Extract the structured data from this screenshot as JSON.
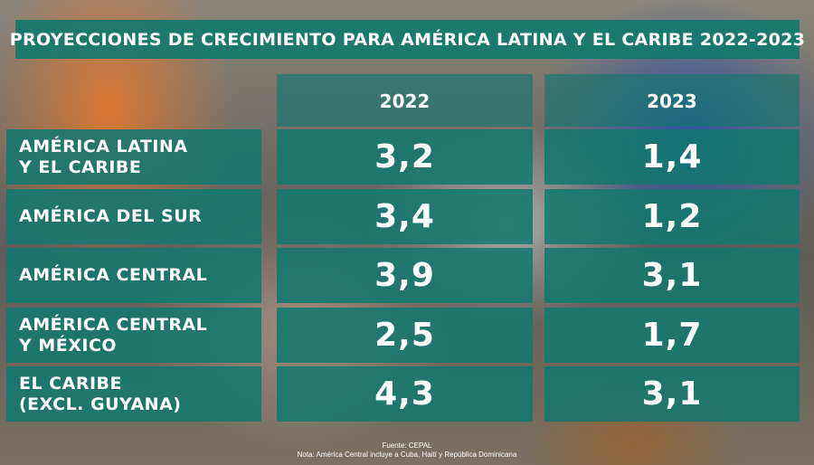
{
  "chart_data": {
    "type": "table",
    "title": "PROYECCIONES DE CRECIMIENTO PARA AMÉRICA LATINA Y EL CARIBE 2022-2023",
    "columns": [
      "2022",
      "2023"
    ],
    "rows": [
      {
        "label": "AMÉRICA LATINA\nY EL CARIBE",
        "values": [
          "3,2",
          "1,4"
        ]
      },
      {
        "label": "AMÉRICA DEL SUR",
        "values": [
          "3,4",
          "1,2"
        ]
      },
      {
        "label": "AMÉRICA CENTRAL",
        "values": [
          "3,9",
          "3,1"
        ]
      },
      {
        "label": "AMÉRICA CENTRAL\nY MÉXICO",
        "values": [
          "2,5",
          "1,7"
        ]
      },
      {
        "label": "EL CARIBE\n(EXCL. GUYANA)",
        "values": [
          "4,3",
          "3,1"
        ]
      }
    ]
  },
  "footer": {
    "source": "Fuente: CEPAL",
    "note": "Nota: América Central incluye a Cuba, Haití y República Dominicana"
  },
  "colors": {
    "teal": "#12786e",
    "text": "#ffffff"
  }
}
